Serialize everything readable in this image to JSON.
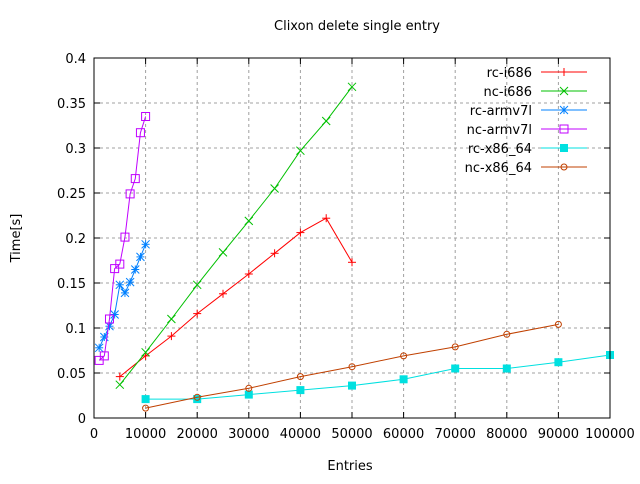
{
  "chart_data": {
    "type": "line",
    "title": "Clixon delete single entry",
    "xlabel": "Entries",
    "ylabel": "Time[s]",
    "xlim": [
      0,
      100000
    ],
    "ylim": [
      0,
      0.4
    ],
    "xticks": [
      0,
      10000,
      20000,
      30000,
      40000,
      50000,
      60000,
      70000,
      80000,
      90000,
      100000
    ],
    "yticks": [
      0,
      0.05,
      0.1,
      0.15,
      0.2,
      0.25,
      0.3,
      0.35,
      0.4
    ],
    "xtick_labels": [
      "0",
      "10000",
      "20000",
      "30000",
      "40000",
      "50000",
      "60000",
      "70000",
      "80000",
      "90000",
      "100000"
    ],
    "ytick_labels": [
      "0",
      "0.05",
      "0.1",
      "0.15",
      "0.2",
      "0.25",
      "0.3",
      "0.35",
      "0.4"
    ],
    "grid": true,
    "legend_position": "top-right",
    "series": [
      {
        "name": "rc-i686",
        "color": "#ff0000",
        "marker": "plus",
        "x": [
          5000,
          10000,
          15000,
          20000,
          25000,
          30000,
          35000,
          40000,
          45000,
          50000
        ],
        "y": [
          0.046,
          0.069,
          0.091,
          0.116,
          0.138,
          0.16,
          0.183,
          0.206,
          0.222,
          0.173
        ]
      },
      {
        "name": "nc-i686",
        "color": "#00c000",
        "marker": "cross",
        "x": [
          5000,
          10000,
          15000,
          20000,
          25000,
          30000,
          35000,
          40000,
          45000,
          50000
        ],
        "y": [
          0.037,
          0.073,
          0.11,
          0.148,
          0.184,
          0.219,
          0.255,
          0.297,
          0.33,
          0.368
        ]
      },
      {
        "name": "rc-armv7l",
        "color": "#0080ff",
        "marker": "star",
        "x": [
          1000,
          2000,
          3000,
          4000,
          5000,
          6000,
          7000,
          8000,
          9000,
          10000
        ],
        "y": [
          0.078,
          0.09,
          0.102,
          0.115,
          0.148,
          0.139,
          0.151,
          0.165,
          0.179,
          0.193
        ]
      },
      {
        "name": "nc-armv7l",
        "color": "#c000ff",
        "marker": "box",
        "x": [
          1000,
          2000,
          3000,
          4000,
          5000,
          6000,
          7000,
          8000,
          9000,
          10000
        ],
        "y": [
          0.064,
          0.069,
          0.11,
          0.166,
          0.171,
          0.201,
          0.249,
          0.266,
          0.317,
          0.335
        ]
      },
      {
        "name": "rc-x86_64",
        "color": "#00e0e0",
        "marker": "filled-box",
        "x": [
          10000,
          20000,
          30000,
          40000,
          50000,
          60000,
          70000,
          80000,
          90000,
          100000
        ],
        "y": [
          0.021,
          0.021,
          0.026,
          0.031,
          0.036,
          0.043,
          0.055,
          0.055,
          0.062,
          0.07
        ]
      },
      {
        "name": "nc-x86_64",
        "color": "#c04000",
        "marker": "circle",
        "x": [
          10000,
          20000,
          30000,
          40000,
          50000,
          60000,
          70000,
          80000,
          90000
        ],
        "y": [
          0.011,
          0.023,
          0.033,
          0.046,
          0.057,
          0.069,
          0.079,
          0.093,
          0.104
        ]
      }
    ]
  }
}
